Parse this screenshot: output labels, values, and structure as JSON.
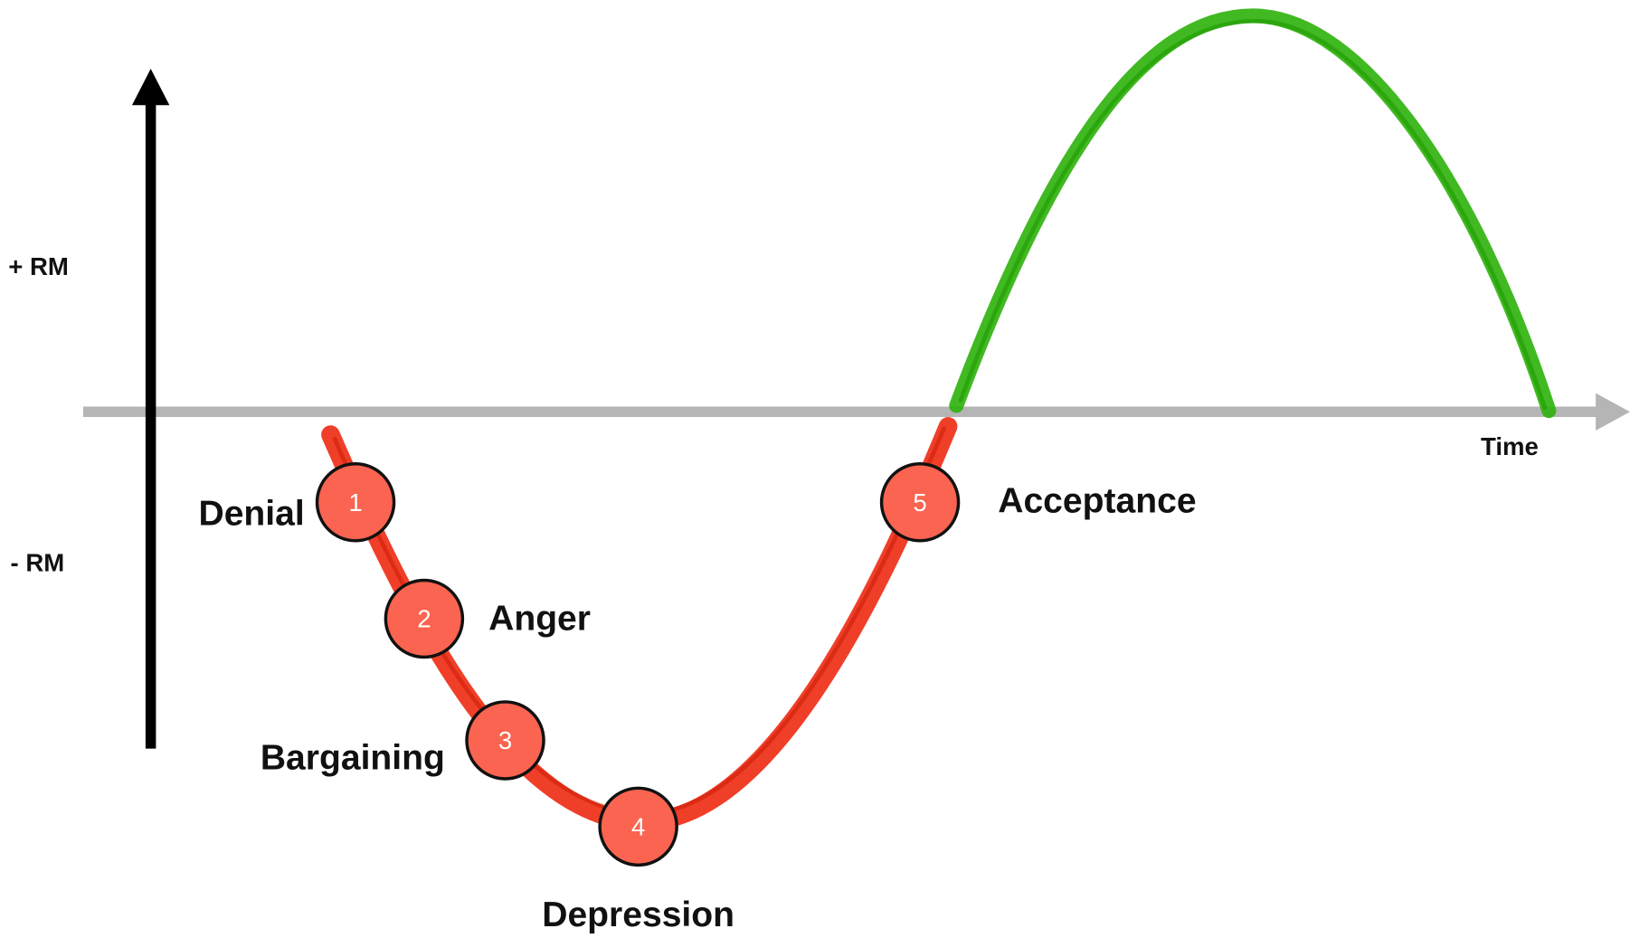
{
  "axis": {
    "positive_label": "+ RM",
    "negative_label": "- RM",
    "time_label": "Time"
  },
  "stages": [
    {
      "number": "1",
      "label": "Denial"
    },
    {
      "number": "2",
      "label": "Anger"
    },
    {
      "number": "3",
      "label": "Bargaining"
    },
    {
      "number": "4",
      "label": "Depression"
    },
    {
      "number": "5",
      "label": "Acceptance"
    }
  ]
}
